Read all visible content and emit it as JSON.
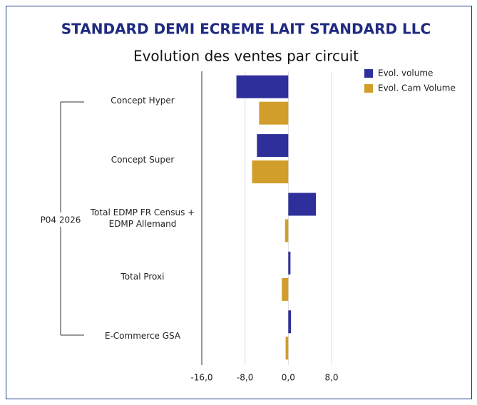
{
  "chart_data": {
    "type": "bar",
    "orientation": "horizontal",
    "title": "STANDARD DEMI ECREME LAIT STANDARD LLC",
    "subtitle": "Evolution des ventes par circuit",
    "group_label": "P04 2026",
    "categories": [
      "Concept Hyper",
      "Concept Super",
      "Total EDMP FR Census + EDMP Allemand",
      "Total Proxi",
      "E-Commerce GSA"
    ],
    "series": [
      {
        "name": "Evol. volume",
        "color": "#2e2f9a",
        "values": [
          -9.6,
          -5.8,
          5.1,
          0.4,
          0.5
        ]
      },
      {
        "name": "Evol. Cam Volume",
        "color": "#d19e2c",
        "values": [
          -5.4,
          -6.7,
          -0.6,
          -1.2,
          -0.5
        ]
      }
    ],
    "xlim": [
      -16,
      8
    ],
    "xticks": [
      {
        "value": -16,
        "label": "-16,0"
      },
      {
        "value": -8,
        "label": "-8,0"
      },
      {
        "value": 0,
        "label": "0,0"
      },
      {
        "value": 8,
        "label": "8,0"
      }
    ],
    "grid": true,
    "legend": "top-right"
  }
}
